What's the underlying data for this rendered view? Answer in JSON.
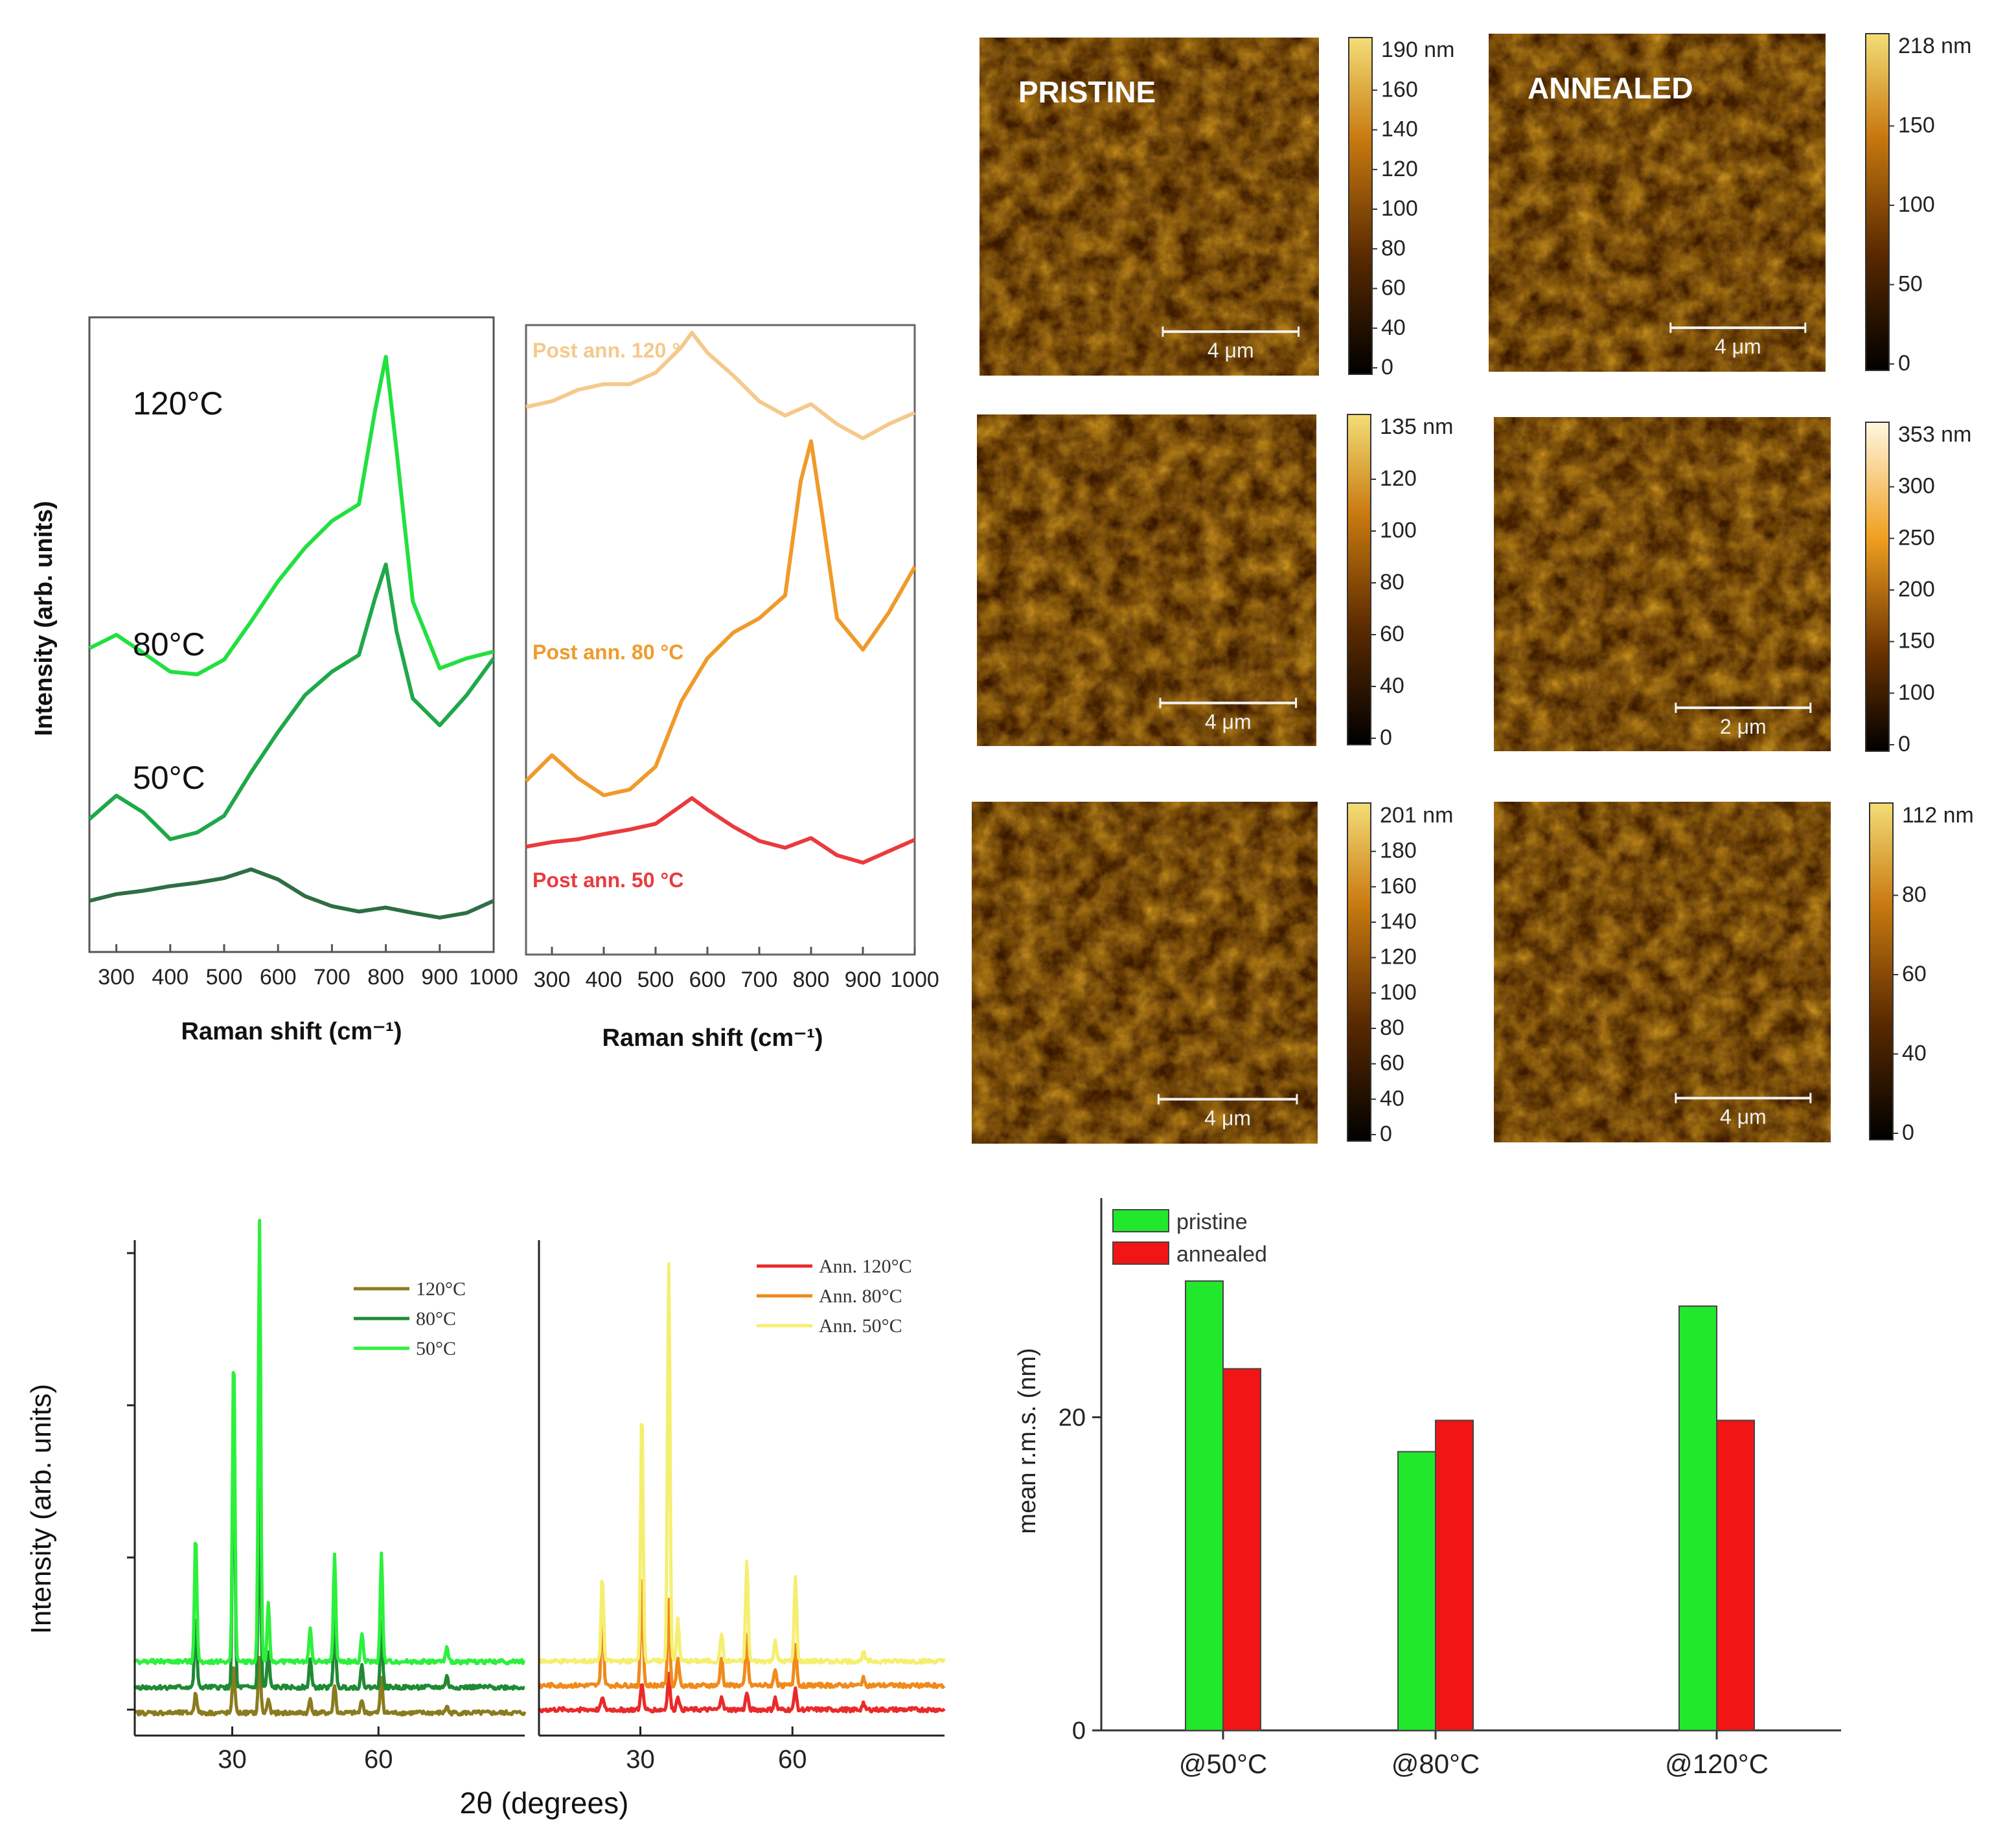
{
  "chart_data": [
    {
      "id": "raman_pristine",
      "type": "line",
      "xlabel": "Raman shift (cm⁻¹)",
      "ylabel": "Intensity (arb. units)",
      "xlim": [
        250,
        1000
      ],
      "xticks": [
        300,
        400,
        500,
        600,
        700,
        800,
        900,
        1000
      ],
      "yticks": false,
      "series": [
        {
          "name": "120°C",
          "label": "120°C",
          "color": "#22e040",
          "x": [
            250,
            300,
            350,
            400,
            450,
            500,
            550,
            600,
            650,
            700,
            750,
            780,
            800,
            820,
            850,
            900,
            950,
            1000
          ],
          "y": [
            4.05,
            4.25,
            3.98,
            3.7,
            3.66,
            3.88,
            4.45,
            5.05,
            5.55,
            5.95,
            6.2,
            7.6,
            8.4,
            7.0,
            4.75,
            3.75,
            3.9,
            4.0
          ]
        },
        {
          "name": "80°C",
          "label": "80°C",
          "color": "#1fa84a",
          "x": [
            250,
            300,
            350,
            400,
            450,
            500,
            550,
            600,
            650,
            700,
            750,
            780,
            800,
            820,
            850,
            900,
            950,
            1000
          ],
          "y": [
            1.5,
            1.85,
            1.6,
            1.2,
            1.3,
            1.55,
            2.2,
            2.8,
            3.35,
            3.7,
            3.95,
            4.8,
            5.3,
            4.3,
            3.3,
            2.9,
            3.35,
            3.9
          ]
        },
        {
          "name": "50°C",
          "label": "50°C",
          "color": "#2e6e45",
          "x": [
            250,
            300,
            350,
            400,
            450,
            500,
            550,
            600,
            650,
            700,
            750,
            800,
            850,
            900,
            950,
            1000
          ],
          "y": [
            0.28,
            0.38,
            0.43,
            0.5,
            0.55,
            0.62,
            0.75,
            0.6,
            0.35,
            0.2,
            0.12,
            0.18,
            0.1,
            0.03,
            0.1,
            0.28
          ]
        }
      ]
    },
    {
      "id": "raman_annealed",
      "type": "line",
      "xlabel": "Raman shift (cm⁻¹)",
      "xlim": [
        250,
        1000
      ],
      "xticks": [
        300,
        400,
        500,
        600,
        700,
        800,
        900,
        1000
      ],
      "yticks": false,
      "series": [
        {
          "name": "Post ann. 120 °",
          "label": "Post ann. 120 °",
          "color": "#f5c98c",
          "x": [
            250,
            300,
            350,
            400,
            450,
            500,
            550,
            570,
            600,
            650,
            700,
            750,
            800,
            850,
            900,
            950,
            1000
          ],
          "y": [
            7.9,
            8.0,
            8.2,
            8.3,
            8.3,
            8.5,
            8.95,
            9.2,
            8.85,
            8.45,
            8.0,
            7.75,
            7.95,
            7.6,
            7.35,
            7.6,
            7.8
          ]
        },
        {
          "name": "Post ann. 80 °C",
          "label": "Post ann. 80 °C",
          "color": "#f09a2a",
          "x": [
            250,
            300,
            350,
            400,
            450,
            500,
            550,
            600,
            650,
            700,
            750,
            780,
            800,
            820,
            850,
            900,
            950,
            1000
          ],
          "y": [
            1.35,
            1.8,
            1.4,
            1.1,
            1.2,
            1.6,
            2.75,
            3.5,
            3.95,
            4.2,
            4.6,
            6.6,
            7.3,
            6.1,
            4.2,
            3.65,
            4.3,
            5.1
          ]
        },
        {
          "name": "Post ann. 50 °C",
          "label": "Post ann. 50 °C",
          "color": "#ea3a3e",
          "x": [
            250,
            300,
            350,
            400,
            450,
            500,
            550,
            570,
            600,
            650,
            700,
            750,
            800,
            850,
            900,
            950,
            1000
          ],
          "y": [
            0.2,
            0.28,
            0.33,
            0.42,
            0.5,
            0.6,
            0.92,
            1.05,
            0.85,
            0.55,
            0.3,
            0.18,
            0.35,
            0.05,
            -0.08,
            0.12,
            0.32
          ]
        }
      ]
    },
    {
      "id": "xrd_pristine",
      "type": "line",
      "xlabel": "2θ (degrees)",
      "ylabel": "Intensity (arb. units)",
      "xlim": [
        10,
        90
      ],
      "xticks": [
        30,
        60
      ],
      "legend_loc": "top-right",
      "series": [
        {
          "name": "120°C",
          "color": "#8a7b1e",
          "baseline": 0.0
        },
        {
          "name": "80°C",
          "color": "#1f8a33",
          "baseline": 0.18
        },
        {
          "name": "50°C",
          "color": "#2df03c",
          "baseline": 0.36
        }
      ],
      "peaks": [
        {
          "x": 22.5,
          "h": [
            0.15,
            0.5,
            0.9
          ]
        },
        {
          "x": 30.3,
          "h": [
            0.35,
            2.1,
            2.2
          ]
        },
        {
          "x": 35.6,
          "h": [
            0.4,
            1.4,
            3.1
          ]
        },
        {
          "x": 37.4,
          "h": [
            0.1,
            0.25,
            0.4
          ]
        },
        {
          "x": 46.0,
          "h": [
            0.1,
            0.2,
            0.25
          ]
        },
        {
          "x": 51.0,
          "h": [
            0.2,
            0.5,
            0.75
          ]
        },
        {
          "x": 56.6,
          "h": [
            0.1,
            0.15,
            0.2
          ]
        },
        {
          "x": 60.6,
          "h": [
            0.25,
            0.45,
            0.75
          ]
        },
        {
          "x": 74.0,
          "h": [
            0.05,
            0.08,
            0.1
          ]
        }
      ]
    },
    {
      "id": "xrd_annealed",
      "type": "line",
      "xlabel": "2θ (degrees)",
      "xlim": [
        10,
        90
      ],
      "xticks": [
        30,
        60
      ],
      "legend_loc": "top-right",
      "series": [
        {
          "name": "Ann. 120°C",
          "color": "#ea2a2a",
          "baseline": 0.0
        },
        {
          "name": "Ann. 80°C",
          "color": "#f08a1a",
          "baseline": 0.17
        },
        {
          "name": "Ann. 50°C",
          "color": "#f5ef70",
          "baseline": 0.34
        }
      ],
      "peaks": [
        {
          "x": 22.5,
          "h": [
            0.1,
            0.55,
            0.6
          ]
        },
        {
          "x": 30.3,
          "h": [
            0.2,
            0.8,
            1.8
          ]
        },
        {
          "x": 35.6,
          "h": [
            0.25,
            0.6,
            2.8
          ]
        },
        {
          "x": 37.4,
          "h": [
            0.1,
            0.2,
            0.3
          ]
        },
        {
          "x": 46.0,
          "h": [
            0.1,
            0.2,
            0.2
          ]
        },
        {
          "x": 51.0,
          "h": [
            0.12,
            0.35,
            0.7
          ]
        },
        {
          "x": 56.6,
          "h": [
            0.08,
            0.12,
            0.15
          ]
        },
        {
          "x": 60.6,
          "h": [
            0.15,
            0.3,
            0.6
          ]
        },
        {
          "x": 74.0,
          "h": [
            0.05,
            0.06,
            0.08
          ]
        }
      ]
    },
    {
      "id": "rms_bar",
      "type": "bar",
      "ylabel": "mean r.m.s. (nm)",
      "categories": [
        "@50°C",
        "@80°C",
        "@120°C"
      ],
      "ylim": [
        0,
        34
      ],
      "yticks": [
        0,
        20
      ],
      "legend_loc": "top-left",
      "series": [
        {
          "name": "pristine",
          "color": "#22e82c",
          "values": [
            28.7,
            17.8,
            27.1
          ]
        },
        {
          "name": "annealed",
          "color": "#f21515",
          "values": [
            23.1,
            19.8,
            19.8
          ]
        }
      ]
    }
  ],
  "afm": [
    {
      "id": "afm-pristine-1",
      "label": "PRISTINE",
      "scalebar": "4 μm",
      "colorbar": {
        "max_label": "190 nm",
        "ticks": [
          "160",
          "140",
          "120",
          "100",
          "80",
          "60",
          "40",
          "0"
        ],
        "light_top": false
      }
    },
    {
      "id": "afm-annealed-1",
      "label": "ANNEALED",
      "scalebar": "4 μm",
      "colorbar": {
        "max_label": "218 nm",
        "ticks": [
          "150",
          "100",
          "50",
          "0"
        ],
        "light_top": false
      }
    },
    {
      "id": "afm-pristine-2",
      "label": "",
      "scalebar": "4 μm",
      "colorbar": {
        "max_label": "135 nm",
        "ticks": [
          "120",
          "100",
          "80",
          "60",
          "40",
          "0"
        ],
        "light_top": false
      }
    },
    {
      "id": "afm-annealed-2",
      "label": "",
      "scalebar": "2 μm",
      "colorbar": {
        "max_label": "353 nm",
        "ticks": [
          "300",
          "250",
          "200",
          "150",
          "100",
          "0"
        ],
        "light_top": true
      }
    },
    {
      "id": "afm-pristine-3",
      "label": "",
      "scalebar": "4 μm",
      "colorbar": {
        "max_label": "201 nm",
        "ticks": [
          "180",
          "160",
          "140",
          "120",
          "100",
          "80",
          "60",
          "40",
          "0"
        ],
        "light_top": false
      }
    },
    {
      "id": "afm-annealed-3",
      "label": "",
      "scalebar": "4 μm",
      "colorbar": {
        "max_label": "112 nm",
        "ticks": [
          "80",
          "60",
          "40",
          "0"
        ],
        "light_top": false
      }
    }
  ],
  "colors": {
    "afm_dark": "#2a1100",
    "afm_mid": "#8a4500",
    "afm_bright": "#e8a63a",
    "afm_highlight": "#ffe08a"
  }
}
